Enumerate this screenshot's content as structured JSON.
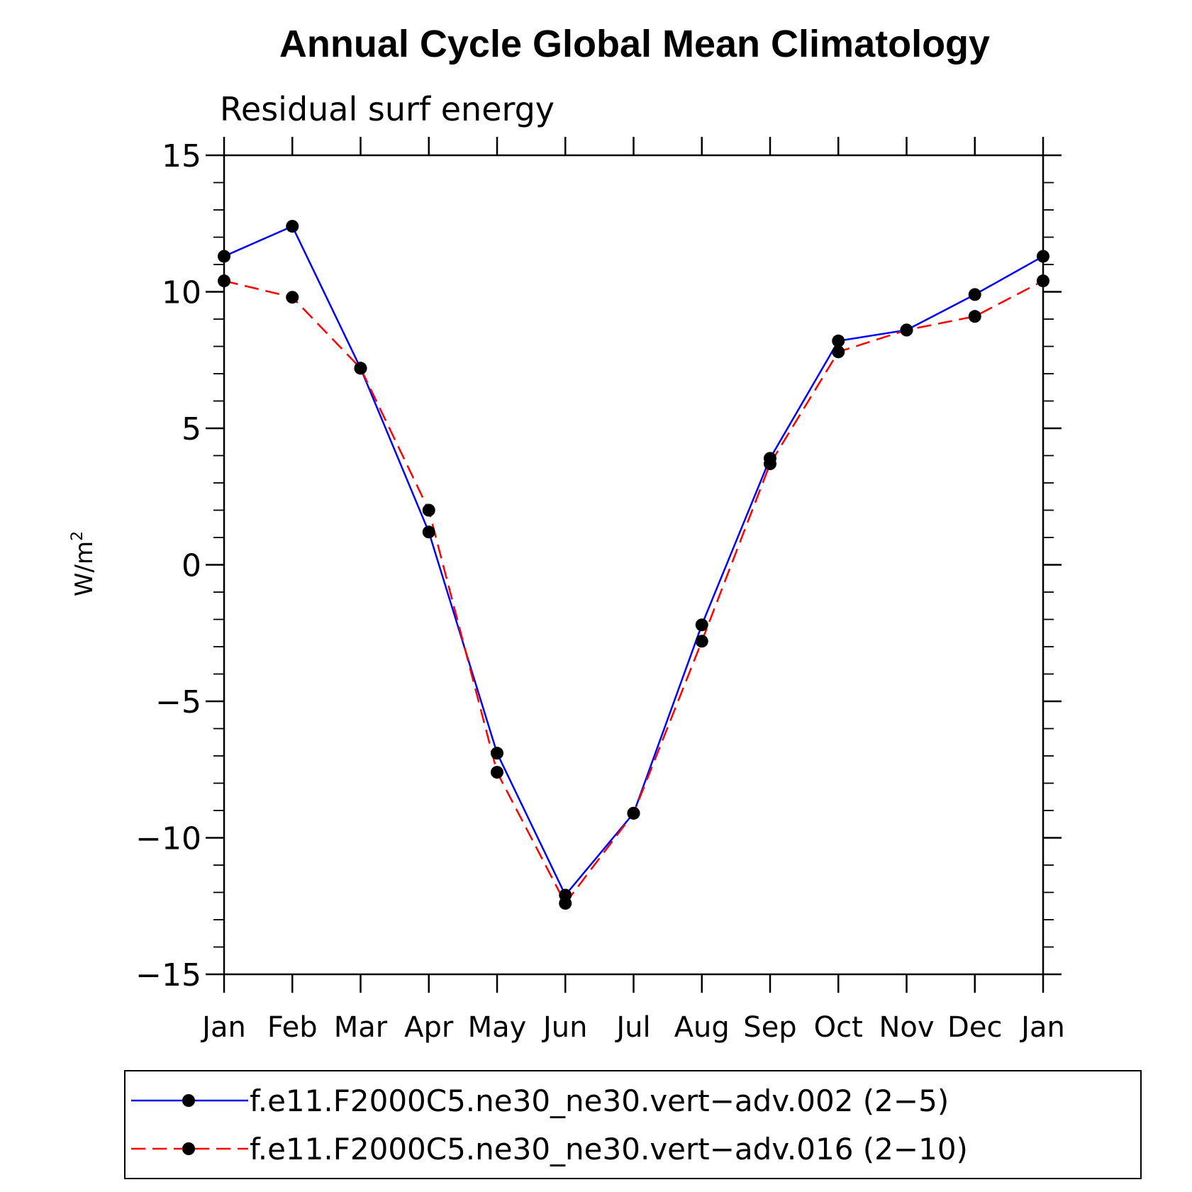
{
  "chart_data": {
    "type": "line",
    "title": "Annual Cycle Global Mean Climatology",
    "subtitle": "Residual surf energy",
    "ylabel": "W/m",
    "ylabel_superscript": "2",
    "xlabel": "",
    "categories": [
      "Jan",
      "Feb",
      "Mar",
      "Apr",
      "May",
      "Jun",
      "Jul",
      "Aug",
      "Sep",
      "Oct",
      "Nov",
      "Dec",
      "Jan"
    ],
    "ylim": [
      -15,
      15
    ],
    "yticks": [
      -15,
      -10,
      -5,
      0,
      5,
      10,
      15
    ],
    "ytick_labels": [
      "−15",
      "−10",
      "−5",
      "0",
      "5",
      "10",
      "15"
    ],
    "y_minor_step": 1,
    "grid": false,
    "legend_position": "bottom",
    "series": [
      {
        "name": "f.e11.F2000C5.ne30_ne30.vert−adv.002 (2−5)",
        "color": "#0000ff",
        "line_style": "solid",
        "marker": "filled-circle",
        "marker_color": "#000000",
        "values": [
          11.3,
          12.4,
          7.2,
          1.2,
          -6.9,
          -12.1,
          -9.1,
          -2.2,
          3.9,
          8.2,
          8.6,
          9.9,
          11.3
        ]
      },
      {
        "name": "f.e11.F2000C5.ne30_ne30.vert−adv.016 (2−10)",
        "color": "#ff0000",
        "line_style": "dashed",
        "marker": "filled-circle",
        "marker_color": "#000000",
        "values": [
          10.4,
          9.8,
          7.2,
          2.0,
          -7.6,
          -12.4,
          -9.1,
          -2.8,
          3.7,
          7.8,
          8.6,
          9.1,
          10.4
        ]
      }
    ]
  }
}
